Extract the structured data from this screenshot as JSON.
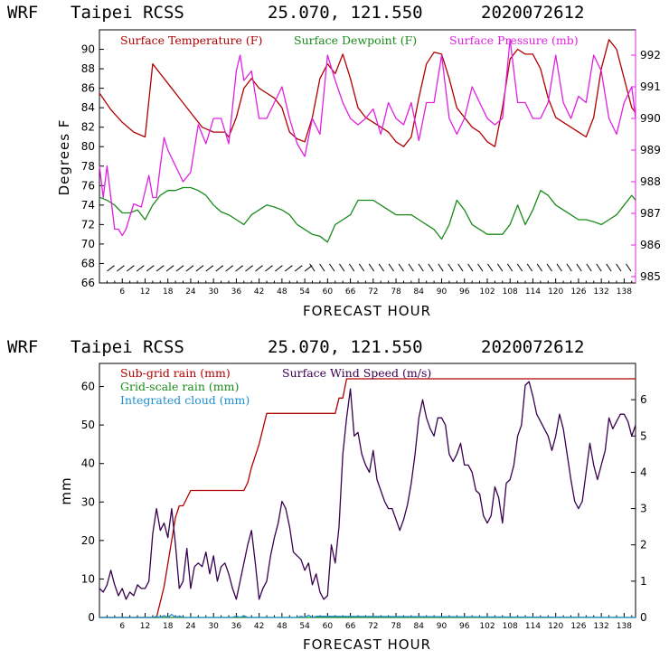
{
  "colors": {
    "temperature": "#b00000",
    "dewpoint": "#1a8a1a",
    "pressure": "#e020e0",
    "subgrid_rain": "#b00000",
    "gridscale_rain": "#1a8a1a",
    "cloud": "#1f8fd0",
    "wind": "#3a0050"
  },
  "chart_data": [
    {
      "type": "line",
      "header": {
        "model": "WRF",
        "station": "Taipei RCSS",
        "coords": "25.070, 121.550",
        "run": "2020072612"
      },
      "xlabel": "FORECAST HOUR",
      "ylabel": "Degrees F",
      "xlim": [
        0,
        141
      ],
      "ylim": [
        66,
        92
      ],
      "y2lim": [
        984.8,
        992.8
      ],
      "x_ticks": [
        "6",
        "12",
        "18",
        "24",
        "30",
        "36",
        "42",
        "48",
        "54",
        "60",
        "66",
        "72",
        "78",
        "84",
        "90",
        "96",
        "102",
        "108",
        "114",
        "120",
        "126",
        "132",
        "138"
      ],
      "y_ticks": [
        "66",
        "68",
        "70",
        "72",
        "74",
        "76",
        "78",
        "80",
        "82",
        "84",
        "86",
        "88",
        "90"
      ],
      "y2_ticks": [
        "985",
        "986",
        "987",
        "988",
        "989",
        "990",
        "991",
        "992"
      ],
      "legend": [
        "Surface Temperature (F)",
        "Surface Dewpoint (F)",
        "Surface Pressure (mb)"
      ],
      "series": [
        {
          "name": "Surface Temperature (F)",
          "axis": "left",
          "x": [
            0,
            3,
            6,
            9,
            12,
            14,
            16,
            18,
            21,
            24,
            27,
            30,
            33,
            34,
            36,
            38,
            40,
            42,
            44,
            46,
            48,
            50,
            52,
            54,
            56,
            58,
            60,
            62,
            64,
            66,
            68,
            70,
            72,
            74,
            76,
            78,
            80,
            82,
            84,
            86,
            88,
            90,
            92,
            94,
            96,
            98,
            100,
            102,
            104,
            106,
            108,
            110,
            112,
            114,
            116,
            118,
            120,
            122,
            124,
            126,
            128,
            130,
            132,
            134,
            136,
            138,
            140,
            141
          ],
          "y": [
            85.5,
            83.8,
            82.5,
            81.5,
            81,
            88.5,
            87.5,
            86.5,
            85,
            83.5,
            82,
            81.5,
            81.5,
            81,
            83,
            86,
            87,
            86,
            85.5,
            85,
            84,
            81.5,
            80.8,
            80.5,
            83,
            87,
            88.5,
            87.5,
            89.5,
            87,
            84,
            83,
            82.5,
            82,
            81.5,
            80.5,
            80,
            81,
            85,
            88.5,
            89.7,
            89.5,
            87,
            84,
            83,
            82,
            81.5,
            80.5,
            80,
            84,
            89,
            90,
            89.5,
            89.5,
            88,
            85,
            83,
            82.5,
            82,
            81.5,
            81,
            83,
            88,
            91,
            90,
            87,
            84,
            83.5
          ]
        },
        {
          "name": "Surface Dewpoint (F)",
          "axis": "left",
          "x": [
            0,
            2,
            4,
            6,
            8,
            10,
            12,
            14,
            16,
            18,
            20,
            22,
            24,
            26,
            28,
            30,
            32,
            34,
            36,
            38,
            40,
            42,
            44,
            46,
            48,
            50,
            52,
            54,
            56,
            58,
            60,
            62,
            64,
            66,
            68,
            70,
            72,
            74,
            76,
            78,
            80,
            82,
            84,
            86,
            88,
            90,
            92,
            94,
            96,
            98,
            100,
            102,
            104,
            106,
            108,
            110,
            112,
            114,
            116,
            118,
            120,
            122,
            124,
            126,
            128,
            130,
            132,
            134,
            136,
            138,
            140,
            141
          ],
          "y": [
            74.8,
            74.5,
            74,
            73.2,
            73.2,
            73.5,
            72.5,
            74,
            75,
            75.5,
            75.5,
            75.8,
            75.8,
            75.5,
            75,
            74,
            73.3,
            73,
            72.5,
            72,
            73,
            73.5,
            74,
            73.8,
            73.5,
            73,
            72,
            71.5,
            71,
            70.8,
            70.2,
            72,
            72.5,
            73,
            74.5,
            74.5,
            74.5,
            74,
            73.5,
            73,
            73,
            73,
            72.5,
            72,
            71.5,
            70.5,
            72,
            74.5,
            73.5,
            72,
            71.5,
            71,
            71,
            71,
            72,
            74,
            72,
            73.5,
            75.5,
            75,
            74,
            73.5,
            73,
            72.5,
            72.5,
            72.3,
            72,
            72.5,
            73,
            74,
            75,
            74.5
          ]
        },
        {
          "name": "Surface Pressure (mb)",
          "axis": "right",
          "x": [
            0,
            1,
            2,
            3,
            4,
            5,
            6,
            7,
            9,
            11,
            13,
            14,
            15,
            16,
            17,
            18,
            20,
            22,
            24,
            26,
            28,
            30,
            32,
            34,
            36,
            37,
            38,
            40,
            42,
            44,
            46,
            48,
            50,
            52,
            54,
            56,
            58,
            60,
            62,
            64,
            66,
            68,
            70,
            72,
            74,
            76,
            78,
            80,
            82,
            84,
            86,
            88,
            90,
            92,
            94,
            96,
            98,
            100,
            102,
            104,
            106,
            108,
            110,
            112,
            114,
            116,
            118,
            120,
            122,
            124,
            126,
            128,
            130,
            132,
            134,
            136,
            138,
            140,
            141
          ],
          "y": [
            988.5,
            987.5,
            988.5,
            987.5,
            986.5,
            986.5,
            986.3,
            986.5,
            987.3,
            987.2,
            988.2,
            987.5,
            987.5,
            988.5,
            989.4,
            989,
            988.5,
            988,
            988.3,
            989.8,
            989.2,
            990,
            990,
            989.2,
            991.5,
            992,
            991.2,
            991.5,
            990,
            990,
            990.5,
            991,
            990,
            989.2,
            988.8,
            990,
            989.5,
            992,
            991.2,
            990.5,
            990,
            989.8,
            990,
            990.3,
            989.5,
            990.5,
            990,
            989.8,
            990.5,
            989.3,
            990.5,
            990.5,
            992,
            990,
            989.5,
            990,
            991,
            990.5,
            990,
            989.8,
            990,
            992.5,
            990.5,
            990.5,
            990,
            990,
            990.5,
            992,
            990.5,
            990,
            990.7,
            990.5,
            992,
            991.5,
            990,
            989.5,
            990.5,
            991,
            990
          ]
        }
      ]
    },
    {
      "type": "line",
      "header": {
        "model": "WRF",
        "station": "Taipei RCSS",
        "coords": "25.070, 121.550",
        "run": "2020072612"
      },
      "xlabel": "FORECAST HOUR",
      "ylabel": "mm",
      "xlim": [
        0,
        141
      ],
      "ylim": [
        0,
        66
      ],
      "y2lim": [
        0,
        7
      ],
      "x_ticks": [
        "6",
        "12",
        "18",
        "24",
        "30",
        "36",
        "42",
        "48",
        "54",
        "60",
        "66",
        "72",
        "78",
        "84",
        "90",
        "96",
        "102",
        "108",
        "114",
        "120",
        "126",
        "132",
        "138"
      ],
      "y_ticks": [
        "0",
        "10",
        "20",
        "30",
        "40",
        "50",
        "60"
      ],
      "y2_ticks": [
        "0",
        "1",
        "2",
        "3",
        "4",
        "5",
        "6"
      ],
      "legend": [
        "Sub-grid rain (mm)",
        "Surface Wind Speed (m/s)",
        "Grid-scale rain (mm)",
        "Integrated cloud (mm)"
      ],
      "series": [
        {
          "name": "Sub-grid rain (mm)",
          "axis": "left",
          "x": [
            0,
            15,
            16,
            17,
            18,
            19,
            20,
            21,
            22,
            24,
            26,
            30,
            38,
            39,
            40,
            41,
            42,
            44,
            46,
            48,
            50,
            54,
            62,
            63,
            64,
            65,
            66,
            141
          ],
          "y": [
            0,
            0,
            4,
            8,
            14,
            20,
            26,
            29,
            29,
            33,
            33,
            33,
            33,
            35,
            39,
            42,
            45,
            53,
            53,
            53,
            53,
            53,
            53,
            57,
            57,
            62,
            62,
            62
          ]
        },
        {
          "name": "Grid-scale rain (mm)",
          "axis": "left",
          "x": [
            0,
            141
          ],
          "y": [
            0,
            0
          ]
        },
        {
          "name": "Integrated cloud (mm)",
          "axis": "left",
          "x": [
            0,
            14,
            15,
            16,
            17,
            18,
            19,
            20,
            21,
            22,
            35,
            36,
            37,
            38,
            39,
            52,
            53,
            54,
            55,
            56,
            57,
            141
          ],
          "y": [
            0,
            0,
            0.3,
            0,
            0.5,
            0,
            0.8,
            0,
            0.4,
            0,
            0,
            0.4,
            0,
            0.5,
            0,
            0,
            0.3,
            0,
            0.6,
            0,
            0.3,
            0
          ]
        },
        {
          "name": "Surface Wind Speed (m/s)",
          "axis": "right",
          "x": [
            0,
            1,
            2,
            3,
            4,
            5,
            6,
            7,
            8,
            9,
            10,
            11,
            12,
            13,
            14,
            15,
            16,
            17,
            18,
            19,
            20,
            21,
            22,
            23,
            24,
            25,
            26,
            27,
            28,
            29,
            30,
            31,
            32,
            33,
            34,
            35,
            36,
            37,
            38,
            39,
            40,
            41,
            42,
            43,
            44,
            45,
            46,
            47,
            48,
            49,
            50,
            51,
            52,
            53,
            54,
            55,
            56,
            57,
            58,
            59,
            60,
            61,
            62,
            63,
            64,
            65,
            66,
            67,
            68,
            69,
            70,
            71,
            72,
            73,
            74,
            75,
            76,
            77,
            78,
            79,
            80,
            81,
            82,
            83,
            84,
            85,
            86,
            87,
            88,
            89,
            90,
            91,
            92,
            93,
            94,
            95,
            96,
            97,
            98,
            99,
            100,
            101,
            102,
            103,
            104,
            105,
            106,
            107,
            108,
            109,
            110,
            111,
            112,
            113,
            114,
            115,
            116,
            117,
            118,
            119,
            120,
            121,
            122,
            123,
            124,
            125,
            126,
            127,
            128,
            129,
            130,
            131,
            132,
            133,
            134,
            135,
            136,
            137,
            138,
            139,
            140,
            141
          ],
          "y": [
            0.8,
            0.7,
            0.9,
            1.3,
            0.9,
            0.6,
            0.8,
            0.5,
            0.7,
            0.6,
            0.9,
            0.8,
            0.8,
            1.0,
            2.3,
            3.0,
            2.4,
            2.6,
            2.2,
            3.0,
            2.0,
            0.8,
            1.0,
            1.9,
            0.8,
            1.4,
            1.5,
            1.4,
            1.8,
            1.2,
            1.7,
            1.0,
            1.4,
            1.5,
            1.2,
            0.8,
            0.5,
            1.0,
            1.5,
            2.0,
            2.4,
            1.5,
            0.5,
            0.8,
            1.0,
            1.7,
            2.2,
            2.6,
            3.2,
            3.0,
            2.5,
            1.8,
            1.7,
            1.6,
            1.3,
            1.5,
            0.9,
            1.2,
            0.7,
            0.5,
            0.6,
            2.0,
            1.5,
            2.5,
            4.5,
            5.5,
            6.3,
            5.0,
            5.1,
            4.5,
            4.2,
            4.0,
            4.6,
            3.8,
            3.5,
            3.2,
            3.0,
            3.0,
            2.7,
            2.4,
            2.7,
            3.1,
            3.7,
            4.5,
            5.5,
            6.0,
            5.5,
            5.2,
            5.0,
            5.5,
            5.5,
            5.3,
            4.5,
            4.3,
            4.5,
            4.8,
            4.2,
            4.2,
            4.0,
            3.5,
            3.4,
            2.8,
            2.6,
            2.8,
            3.6,
            3.3,
            2.6,
            3.7,
            3.8,
            4.2,
            5.0,
            5.3,
            6.4,
            6.5,
            6.1,
            5.6,
            5.4,
            5.2,
            5.0,
            4.6,
            5.0,
            5.6,
            5.2,
            4.5,
            3.8,
            3.2,
            3.0,
            3.2,
            4.0,
            4.8,
            4.2,
            3.8,
            4.2,
            4.6,
            5.5,
            5.2,
            5.4,
            5.6,
            5.6,
            5.4,
            5.0,
            5.3
          ]
        }
      ]
    }
  ]
}
